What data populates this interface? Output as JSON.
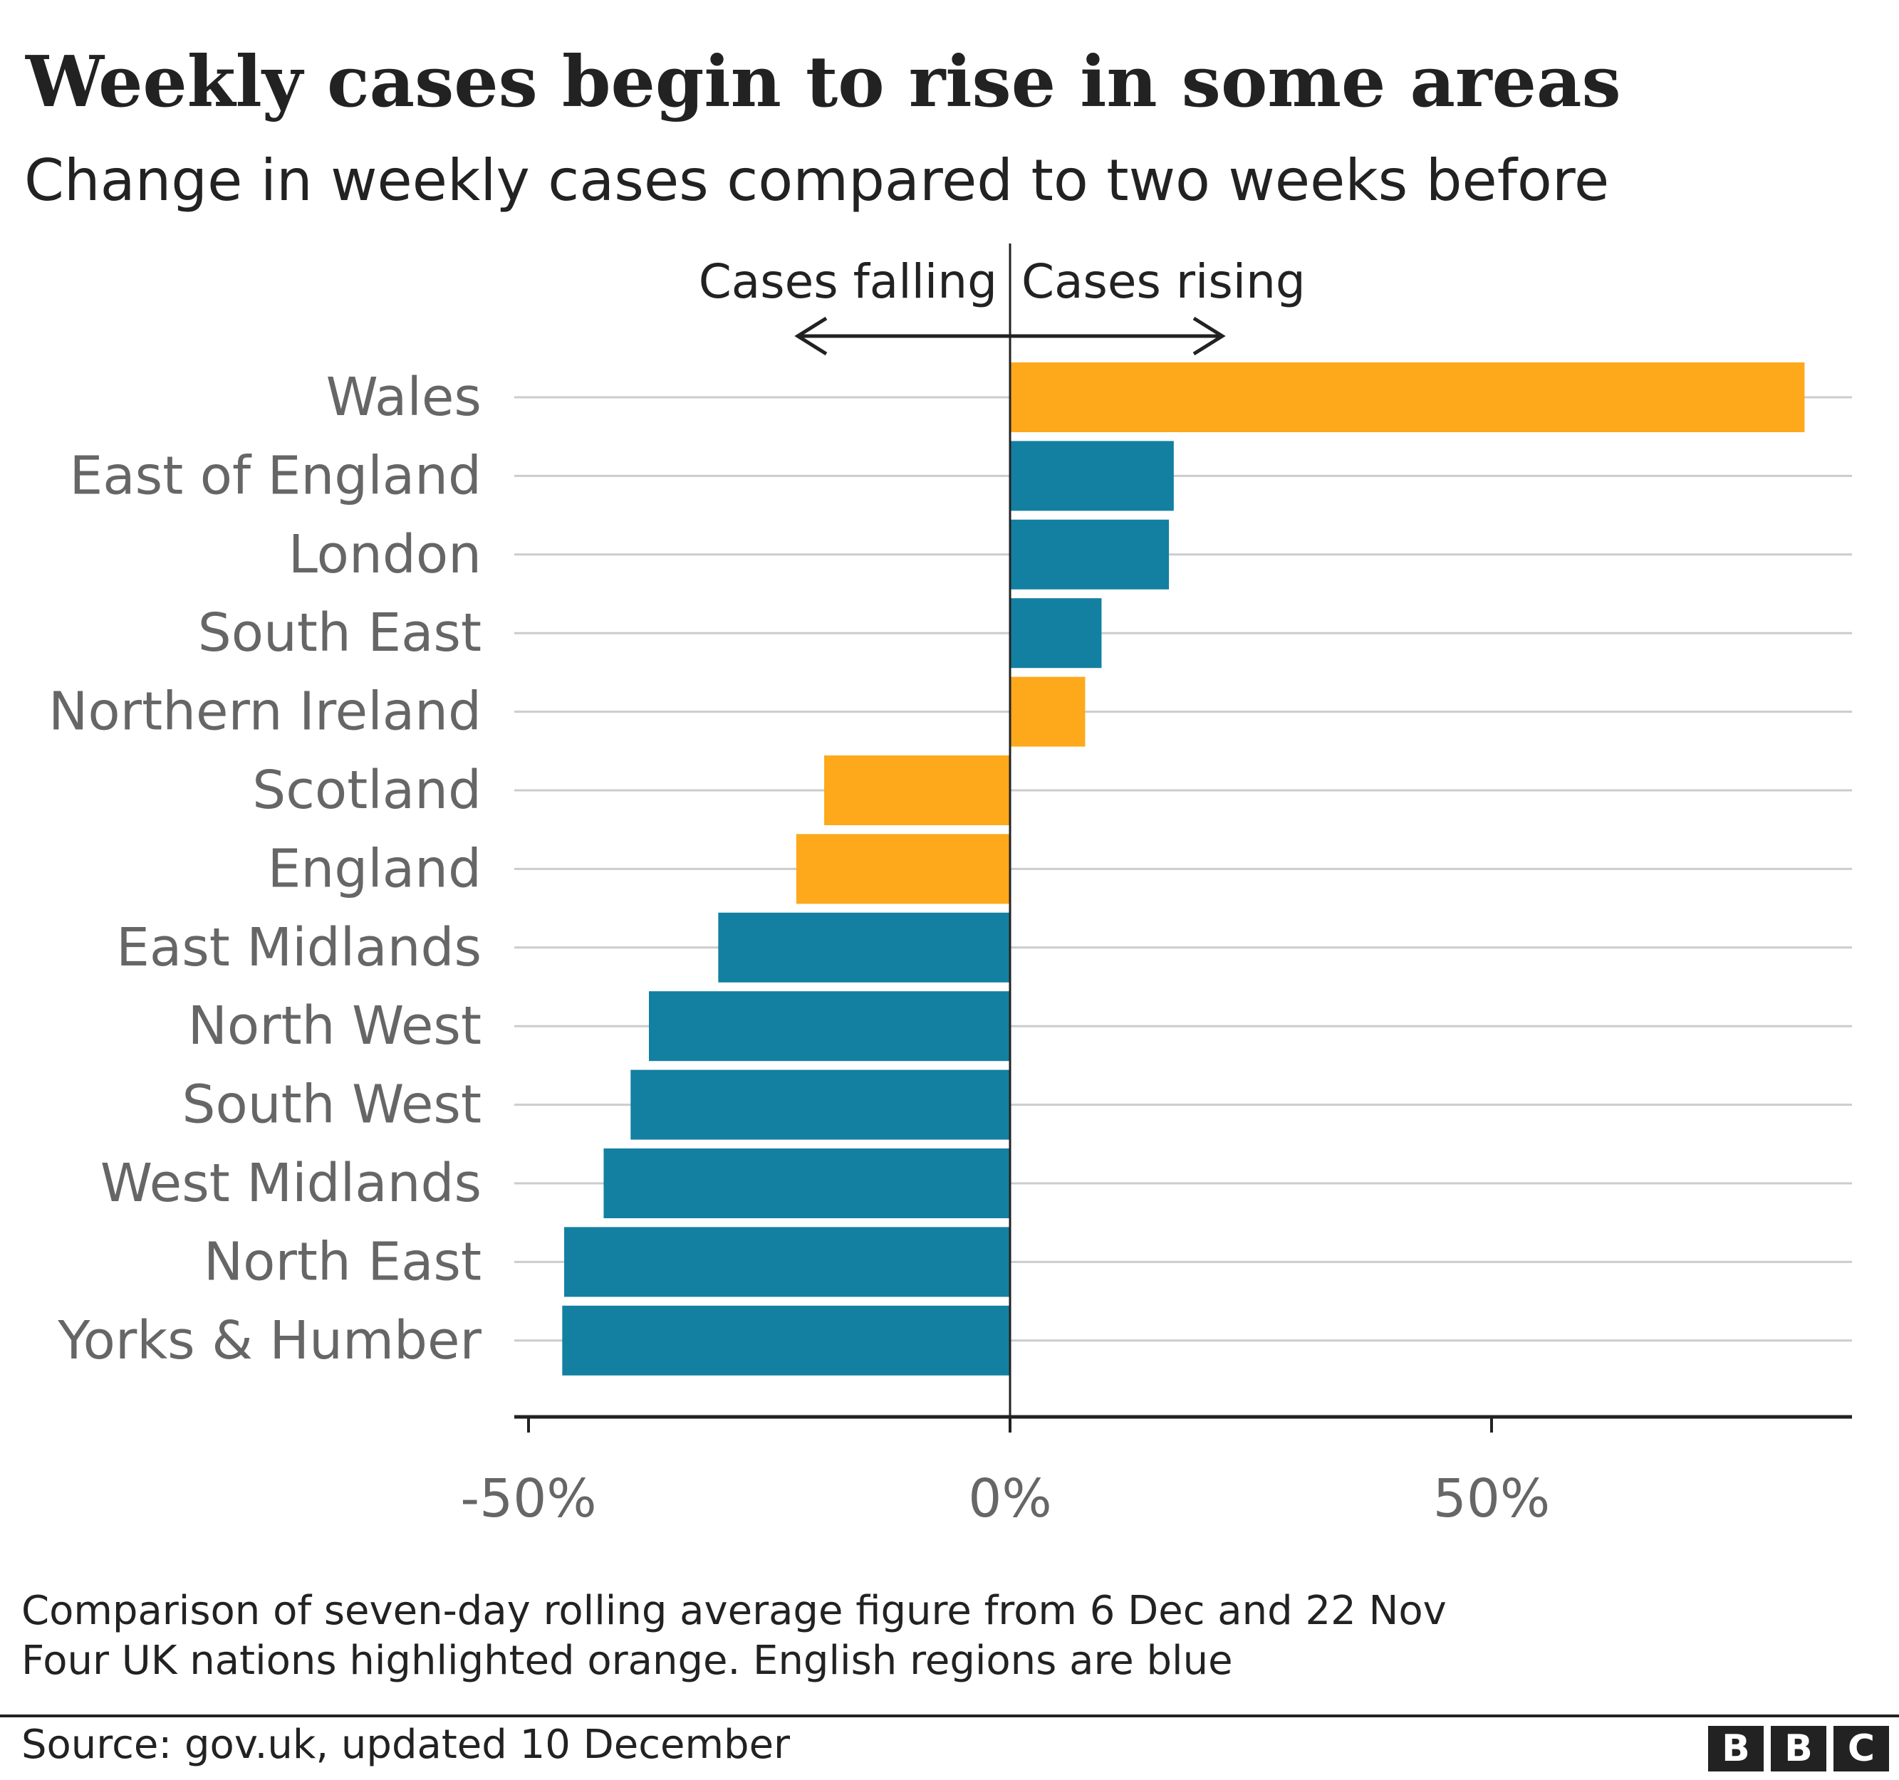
{
  "header": {
    "title": "Weekly cases begin to rise in some areas",
    "subtitle": "Change in weekly cases compared to two weeks before"
  },
  "annotations": {
    "falling": "Cases falling",
    "rising": "Cases rising"
  },
  "colors": {
    "nation": "#FDA91B",
    "region": "#1380A1",
    "grid": "#CCCCCC",
    "axis": "#222222",
    "label": "#666666"
  },
  "chart_data": {
    "type": "bar",
    "orientation": "horizontal",
    "title": "Weekly cases begin to rise in some areas",
    "subtitle": "Change in weekly cases compared to two weeks before",
    "xlabel": "",
    "ylabel": "",
    "categories": [
      "Wales",
      "East of England",
      "London",
      "South East",
      "Northern Ireland",
      "Scotland",
      "England",
      "East Midlands",
      "North West",
      "South West",
      "West Midlands",
      "North East",
      "Yorks & Humber"
    ],
    "values": [
      82.5,
      17,
      16.5,
      9.5,
      7.8,
      -19.3,
      -22.2,
      -30.3,
      -37.5,
      -39.4,
      -42.2,
      -46.3,
      -46.5
    ],
    "groups": [
      "nation",
      "region",
      "region",
      "region",
      "nation",
      "nation",
      "nation",
      "region",
      "region",
      "region",
      "region",
      "region",
      "region"
    ],
    "unit": "%",
    "xlim": [
      -51,
      88
    ],
    "xticks": [
      -50,
      0,
      50
    ],
    "xtick_labels": [
      "-50%",
      "0%",
      "50%"
    ],
    "grid": true
  },
  "footer": {
    "note_1": "Comparison of seven-day rolling average figure from 6 Dec and 22 Nov",
    "note_2": "Four UK nations highlighted orange. English regions are blue",
    "source": "Source: gov.uk, updated 10 December",
    "logo": [
      "B",
      "B",
      "C"
    ]
  }
}
